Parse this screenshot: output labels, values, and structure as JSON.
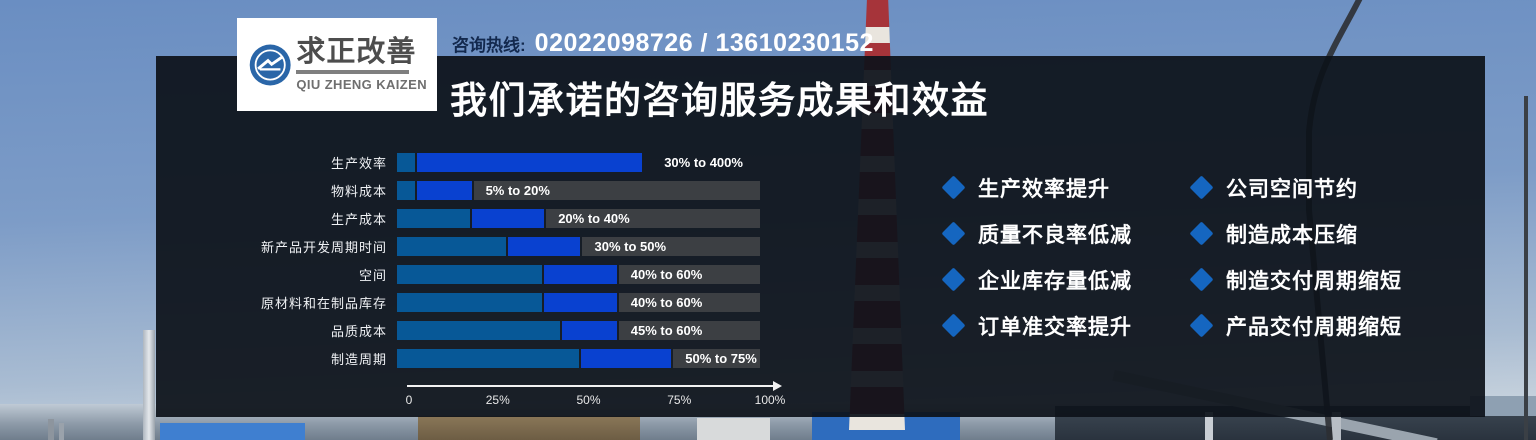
{
  "logo": {
    "title": "求正改善",
    "subtitle": "QIU ZHENG KAIZEN"
  },
  "header": {
    "hotline_label": "咨询热线:",
    "hotline_numbers": "02022098726 / 13610230152",
    "title": "我们承诺的咨询服务成果和效益"
  },
  "chart_data": {
    "type": "bar",
    "orientation": "horizontal",
    "title": "",
    "xlabel": "",
    "ylabel": "",
    "x_range": [
      0,
      100
    ],
    "x_ticks": [
      "0",
      "25%",
      "50%",
      "75%",
      "100%"
    ],
    "tick_positions": [
      0,
      25,
      50,
      75,
      100
    ],
    "grid": false,
    "legend": false,
    "rows": [
      {
        "label": "生产效率",
        "range_label": "30% to 400%",
        "min": 30,
        "max": 400,
        "display_min": 5,
        "display_max": 67,
        "track_bg": false
      },
      {
        "label": "物料成本",
        "range_label": "5% to 20%",
        "min": 5,
        "max": 20
      },
      {
        "label": "生产成本",
        "range_label": "20% to 40%",
        "min": 20,
        "max": 40
      },
      {
        "label": "新产品开发周期时间",
        "range_label": "30% to 50%",
        "min": 30,
        "max": 50
      },
      {
        "label": "空间",
        "range_label": "40% to 60%",
        "min": 40,
        "max": 60
      },
      {
        "label": "原材料和在制品库存",
        "range_label": "40% to 60%",
        "min": 40,
        "max": 60
      },
      {
        "label": "品质成本",
        "range_label": "45% to 60%",
        "min": 45,
        "max": 60
      },
      {
        "label": "制造周期",
        "range_label": "50% to 75%",
        "min": 50,
        "max": 75
      }
    ],
    "colors": {
      "base_segment": "#075897",
      "range_segment": "#0941d0",
      "track": "#3c3f43",
      "axis": "#f2f2f2"
    }
  },
  "benefits": {
    "bullet_color": "#1566c0",
    "columns": [
      {
        "items": [
          "生产效率提升",
          "质量不良率低减",
          "企业库存量低减",
          "订单准交率提升"
        ]
      },
      {
        "items": [
          "公司空间节约",
          "制造成本压缩",
          "制造交付周期缩短",
          "产品交付周期缩短"
        ]
      }
    ]
  }
}
